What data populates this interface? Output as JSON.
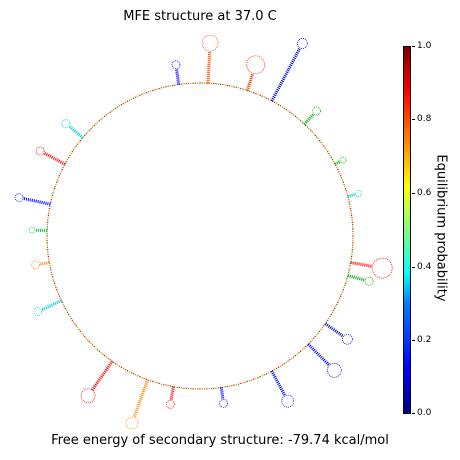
{
  "title": "MFE structure at 37.0 C",
  "footer": "Free energy of secondary structure: -79.74 kcal/mol",
  "colorbar": {
    "label": "Equilibrium probability",
    "ticks": [
      "0.0",
      "0.2",
      "0.4",
      "0.6",
      "0.8",
      "1.0"
    ],
    "colormap": "jet"
  },
  "colors": {
    "low": "#00007f",
    "mid": "#7fff7f",
    "high": "#7f0000",
    "backbone_a": "#ff0000",
    "backbone_b": "#00aa00"
  }
}
